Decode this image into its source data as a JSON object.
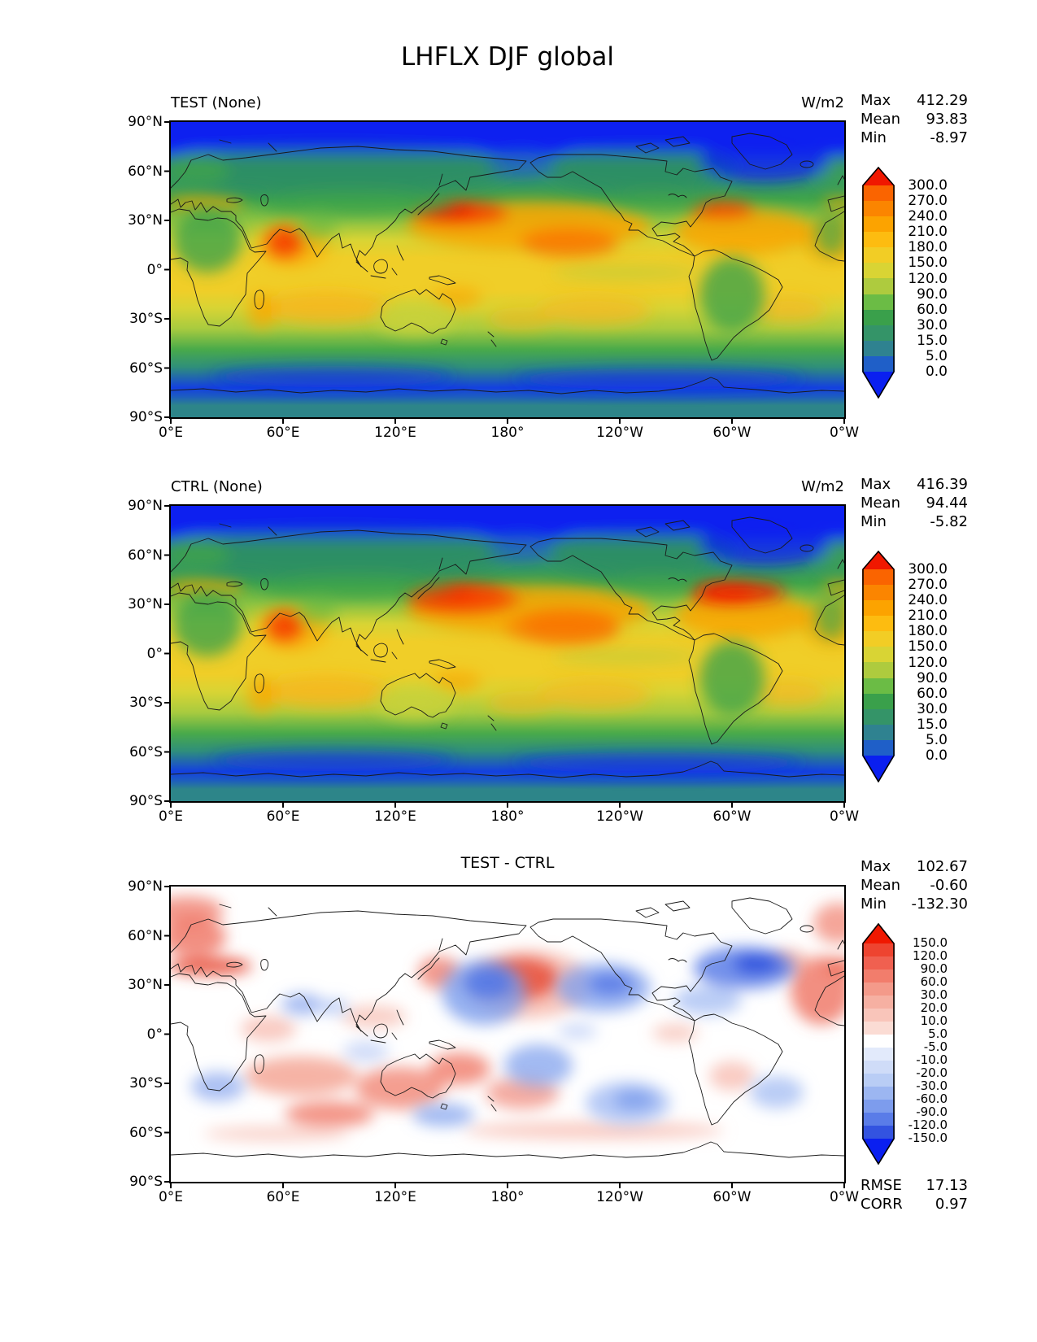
{
  "title": "LHFLX DJF global",
  "axes": {
    "lat_ticks": [
      "90°N",
      "60°N",
      "30°N",
      "0°",
      "30°S",
      "60°S",
      "90°S"
    ],
    "lon_ticks": [
      "0°E",
      "60°E",
      "120°E",
      "180°",
      "120°W",
      "60°W",
      "0°W"
    ]
  },
  "panels": [
    {
      "name": "TEST",
      "title": "TEST (None)",
      "units": "W/m2",
      "stats": {
        "max_label": "Max",
        "max": "412.29",
        "mean_label": "Mean",
        "mean": "93.83",
        "min_label": "Min",
        "min": "-8.97"
      }
    },
    {
      "name": "CTRL",
      "title": "CTRL (None)",
      "units": "W/m2",
      "stats": {
        "max_label": "Max",
        "max": "416.39",
        "mean_label": "Mean",
        "mean": "94.44",
        "min_label": "Min",
        "min": "-5.82"
      }
    },
    {
      "name": "DIFF",
      "title": "TEST - CTRL",
      "stats": {
        "max_label": "Max",
        "max": "102.67",
        "mean_label": "Mean",
        "mean": "-0.60",
        "min_label": "Min",
        "min": "-132.30"
      },
      "metrics": {
        "rmse_label": "RMSE",
        "rmse": "17.13",
        "corr_label": "CORR",
        "corr": "0.97"
      }
    }
  ],
  "colorbar_flux": {
    "ticks": [
      "300.0",
      "270.0",
      "240.0",
      "210.0",
      "180.0",
      "150.0",
      "120.0",
      "90.0",
      "60.0",
      "30.0",
      "15.0",
      "5.0",
      "0.0"
    ],
    "colors": [
      "#f01800",
      "#fa6400",
      "#fb8500",
      "#fca300",
      "#fdbc10",
      "#f2cd25",
      "#d9d434",
      "#aecb3e",
      "#6bbc45",
      "#3aa04b",
      "#349468",
      "#2f8290",
      "#1f5fc8",
      "#0a1ff0"
    ]
  },
  "colorbar_diff": {
    "ticks": [
      "150.0",
      "120.0",
      "90.0",
      "60.0",
      "30.0",
      "20.0",
      "10.0",
      "5.0",
      "-5.0",
      "-10.0",
      "-20.0",
      "-30.0",
      "-60.0",
      "-90.0",
      "-120.0",
      "-150.0"
    ],
    "colors": [
      "#f01800",
      "#ee4430",
      "#f06050",
      "#f27d6c",
      "#f49a8a",
      "#f6b0a2",
      "#f9c5ba",
      "#fbdcd4",
      "#ffffff",
      "#e2eafb",
      "#cfdcf8",
      "#b9cdf5",
      "#9cb6f1",
      "#7d9ced",
      "#5a7ce8",
      "#3353e0",
      "#0a1ff0"
    ]
  },
  "chart_data": [
    {
      "type": "heatmap",
      "title": "TEST (None)",
      "variable": "LHFLX",
      "season": "DJF",
      "region": "global",
      "units": "W/m2",
      "x": {
        "label": "longitude",
        "range": [
          0,
          360
        ],
        "ticks": [
          "0°E",
          "60°E",
          "120°E",
          "180°",
          "120°W",
          "60°W",
          "0°W"
        ]
      },
      "y": {
        "label": "latitude",
        "range": [
          -90,
          90
        ],
        "ticks": [
          "90°S",
          "60°S",
          "30°S",
          "0°",
          "30°N",
          "60°N",
          "90°N"
        ]
      },
      "stats": {
        "max": 412.29,
        "mean": 93.83,
        "min": -8.97
      },
      "contour_levels": [
        0.0,
        5.0,
        15.0,
        30.0,
        60.0,
        90.0,
        120.0,
        150.0,
        180.0,
        210.0,
        240.0,
        270.0,
        300.0
      ],
      "colormap": "blue-teal-green-yellow-orange-red rainbow, extended arrows both ends",
      "legend_position": "right",
      "features": "Red maxima (>300) over Kuroshio east of Japan, Gulf Stream off eastern North America and Arabian Sea; broad yellow-orange subtropical oceans; green continents; deep blue (<=0) Arctic and ~60-75S band; teal Antarctic interior"
    },
    {
      "type": "heatmap",
      "title": "CTRL (None)",
      "variable": "LHFLX",
      "season": "DJF",
      "region": "global",
      "units": "W/m2",
      "x": {
        "label": "longitude",
        "range": [
          0,
          360
        ],
        "ticks": [
          "0°E",
          "60°E",
          "120°E",
          "180°",
          "120°W",
          "60°W",
          "0°W"
        ]
      },
      "y": {
        "label": "latitude",
        "range": [
          -90,
          90
        ],
        "ticks": [
          "90°S",
          "60°S",
          "30°S",
          "0°",
          "30°N",
          "60°N",
          "90°N"
        ]
      },
      "stats": {
        "max": 416.39,
        "mean": 94.44,
        "min": -5.82
      },
      "contour_levels": [
        0.0,
        5.0,
        15.0,
        30.0,
        60.0,
        90.0,
        120.0,
        150.0,
        180.0,
        210.0,
        240.0,
        270.0,
        300.0
      ],
      "colormap": "blue-teal-green-yellow-orange-red rainbow, extended arrows both ends",
      "legend_position": "right",
      "features": "Same pattern as TEST with slightly stronger Gulf Stream and central Pacific maxima"
    },
    {
      "type": "heatmap",
      "title": "TEST - CTRL",
      "variable": "LHFLX difference",
      "season": "DJF",
      "region": "global",
      "units": "W/m2",
      "x": {
        "label": "longitude",
        "range": [
          0,
          360
        ],
        "ticks": [
          "0°E",
          "60°E",
          "120°E",
          "180°",
          "120°W",
          "60°W",
          "0°W"
        ]
      },
      "y": {
        "label": "latitude",
        "range": [
          -90,
          90
        ],
        "ticks": [
          "90°S",
          "60°S",
          "30°S",
          "0°",
          "30°N",
          "60°N",
          "90°N"
        ]
      },
      "stats": {
        "max": 102.67,
        "mean": -0.6,
        "min": -132.3,
        "rmse": 17.13,
        "corr": 0.97
      },
      "contour_levels": [
        -150.0,
        -120.0,
        -90.0,
        -60.0,
        -30.0,
        -20.0,
        -10.0,
        -5.0,
        5.0,
        10.0,
        20.0,
        30.0,
        60.0,
        90.0,
        120.0,
        150.0
      ],
      "colormap": "blue-white-red diverging, extended arrows both ends",
      "legend_position": "right",
      "features": "Near-zero (white) over most land and poles; positive (red) anomalies over Europe/Mediterranean, central North Pacific, subtropical South Indian Ocean and around Australia; negative (blue) anomalies over NW Atlantic, NW and NE Pacific, Arabian Sea, equatorial central Pacific and SE Pacific"
    }
  ]
}
